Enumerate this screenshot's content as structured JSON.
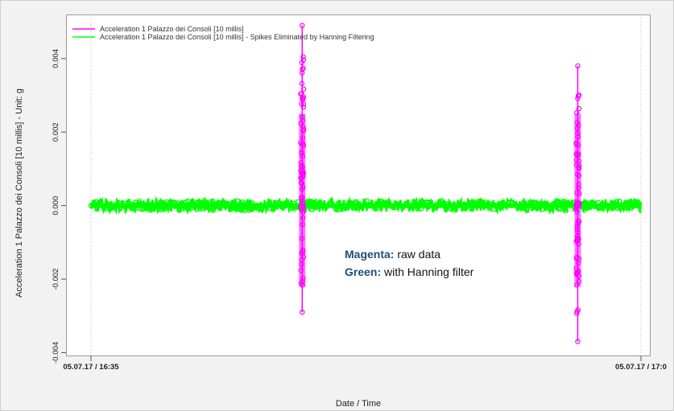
{
  "chart_data": {
    "type": "line",
    "title": "",
    "xlabel": "Date / Time",
    "ylabel": "Acceleration 1 Palazzo dei Consoli [10 millis]  - Unit:  g",
    "x_ticks": [
      "05.07.17 / 16:35",
      "05.07.17 / 17:0"
    ],
    "ylim": [
      -0.0041,
      0.0052
    ],
    "y_ticks": [
      -0.004,
      -0.002,
      0.0,
      0.002,
      0.004
    ],
    "y_tick_labels": [
      "-0.004",
      "-0.002",
      "0.000",
      "0.002",
      "0.004"
    ],
    "grid": "vertical dotted",
    "legend": {
      "placement": "top-left",
      "entries": [
        {
          "label": "Acceleration 1 Palazzo dei Consoli [10 millis]",
          "color": "#ff00ff"
        },
        {
          "label": "Acceleration 1 Palazzo dei Consoli [10 millis]   - Spikes Eliminated by Hanning Filtering",
          "color": "#00ff00"
        }
      ]
    },
    "series": [
      {
        "color": "#ff00ff",
        "spikes": [
          {
            "x_frac": 0.384,
            "max": 0.0049,
            "min": -0.0029
          },
          {
            "x_frac": 0.885,
            "max": 0.0038,
            "min": -0.0037
          }
        ]
      },
      {
        "color": "#00ff00",
        "baseline": 0.0,
        "amplitude": 0.00013
      }
    ]
  },
  "annotation": {
    "magenta_label": "Magenta:",
    "magenta_text": " raw data",
    "green_label": "Green:",
    "green_text": " with Hanning filter"
  }
}
